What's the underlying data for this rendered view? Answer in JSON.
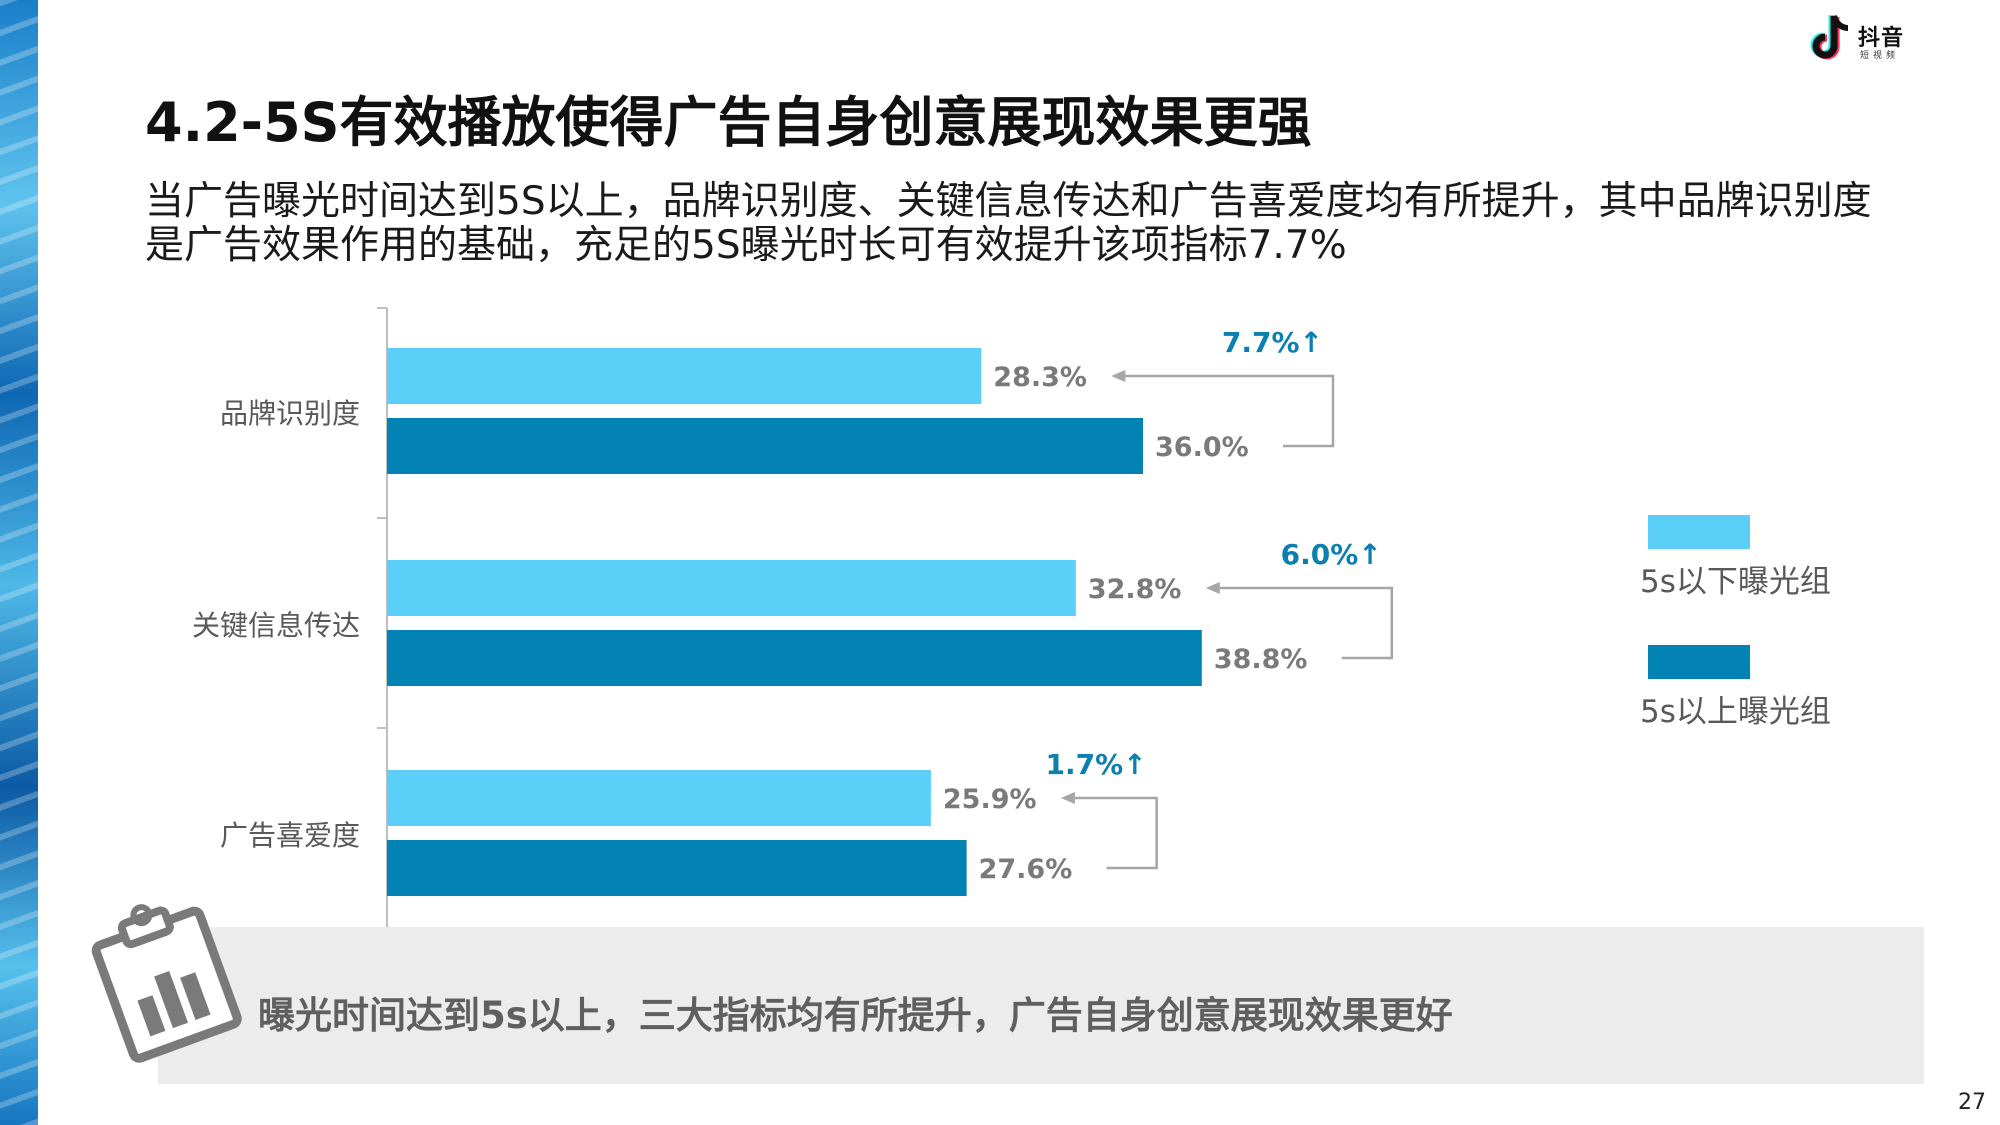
{
  "header": {
    "title": "4.2-5S有效播放使得广告自身创意展现效果更强",
    "subtitle": "当广告曝光时间达到5S以上，品牌识别度、关键信息传达和广告喜爱度均有所提升，其中品牌识别度是广告效果作用的基础，充足的5S曝光时长可有效提升该项指标7.7%"
  },
  "logo": {
    "name": "抖音",
    "sub": "短视频",
    "icon": "douyin-note-icon"
  },
  "colors": {
    "light_bar": "#5bcff7",
    "dark_bar": "#0283b4",
    "uplift_text": "#0a7fb0",
    "arrow": "#a6a6a6"
  },
  "chart_data": {
    "type": "bar",
    "orientation": "horizontal",
    "categories": [
      "品牌识别度",
      "关键信息传达",
      "广告喜爱度"
    ],
    "series": [
      {
        "name": "5s以下曝光组",
        "values": [
          28.3,
          32.8,
          25.9
        ],
        "labels": [
          "28.3%",
          "32.8%",
          "25.9%"
        ]
      },
      {
        "name": "5s以上曝光组",
        "values": [
          36.0,
          38.8,
          27.6
        ],
        "labels": [
          "36.0%",
          "38.8%",
          "27.6%"
        ]
      }
    ],
    "uplift_labels": [
      "7.7%↑",
      "6.0%↑",
      "1.7%↑"
    ],
    "xlim": [
      0,
      60
    ],
    "legend_position": "right",
    "grid": false
  },
  "summary": {
    "text": "曝光时间达到5s以上，三大指标均有所提升，广告自身创意展现效果更好",
    "icon": "clipboard-chart-icon"
  },
  "page_number": "27"
}
